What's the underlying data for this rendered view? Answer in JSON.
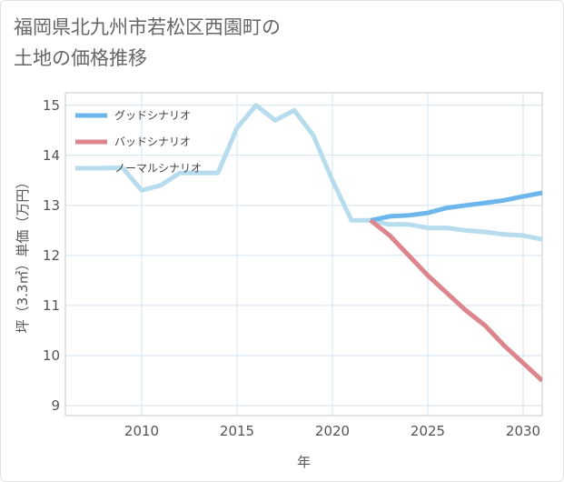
{
  "title": {
    "line1": "福岡県北九州市若松区西園町の",
    "line2": "土地の価格推移"
  },
  "chart_data": {
    "type": "line",
    "xlabel": "年",
    "ylabel": "坪（3.3㎡）単価（万円）",
    "xlim": [
      2006,
      2031
    ],
    "ylim": [
      8.8,
      15.25
    ],
    "xticks": [
      2010,
      2015,
      2020,
      2025,
      2030
    ],
    "yticks": [
      9,
      10,
      11,
      12,
      13,
      14,
      15
    ],
    "grid": true,
    "legend_position": "top-left",
    "series": [
      {
        "name": "グッドシナリオ",
        "color": "#6cb6ec",
        "x": [
          2022,
          2023,
          2024,
          2025,
          2026,
          2027,
          2028,
          2029,
          2030,
          2031
        ],
        "y": [
          12.7,
          12.78,
          12.8,
          12.85,
          12.95,
          13.0,
          13.05,
          13.1,
          13.18,
          13.25
        ]
      },
      {
        "name": "バッドシナリオ",
        "color": "#dd858c",
        "x": [
          2022,
          2023,
          2024,
          2025,
          2026,
          2027,
          2028,
          2029,
          2030,
          2031
        ],
        "y": [
          12.7,
          12.4,
          12.0,
          11.6,
          11.25,
          10.9,
          10.6,
          10.2,
          9.85,
          9.5
        ]
      },
      {
        "name": "ノーマルシナリオ",
        "color": "#b7dcee",
        "x": [
          2008,
          2009,
          2010,
          2011,
          2012,
          2013,
          2014,
          2015,
          2016,
          2017,
          2018,
          2019,
          2020,
          2021,
          2022,
          2023,
          2024,
          2025,
          2026,
          2027,
          2028,
          2029,
          2030,
          2031
        ],
        "y": [
          13.75,
          13.75,
          13.3,
          13.4,
          13.65,
          13.65,
          13.65,
          14.55,
          15.0,
          14.7,
          14.9,
          14.4,
          13.5,
          12.7,
          12.7,
          12.62,
          12.62,
          12.55,
          12.55,
          12.5,
          12.47,
          12.42,
          12.4,
          12.32
        ]
      }
    ]
  }
}
